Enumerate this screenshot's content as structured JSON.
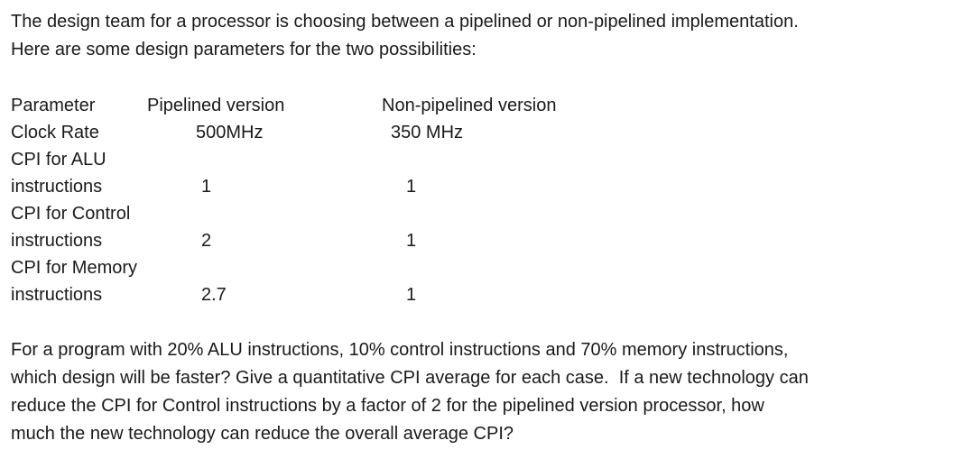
{
  "page": {
    "background_color": "#ffffff",
    "text_color": "#1a1a1a"
  },
  "intro": {
    "lines": [
      "The design team for a processor is choosing between a pipelined or non-pipelined implementation.",
      "Here are some design parameters for the two possibilities:"
    ]
  },
  "table": {
    "headers": [
      "Parameter",
      "Pipelined version",
      "Non-pipelined version"
    ],
    "rows": [
      {
        "parameter": "Clock Rate",
        "pipelined": "500MHz",
        "non_pipelined": "350 MHz"
      },
      {
        "parameter": "CPI for ALU instructions",
        "pipelined": "1",
        "non_pipelined": "1"
      },
      {
        "parameter": "CPI for Control instructions",
        "pipelined": "2",
        "non_pipelined": "1"
      },
      {
        "parameter": "CPI for Memory instructions",
        "pipelined": "2.7",
        "non_pipelined": "1"
      }
    ]
  },
  "question": {
    "lines": [
      "For a program with 20% ALU instructions, 10% control instructions and 70% memory instructions,",
      "which design will be faster? Give a quantitative CPI average for each case.  If a new technology can",
      "reduce the CPI for Control instructions by a factor of 2 for the pipelined version processor, how",
      "much the new technology can reduce the overall average CPI?"
    ]
  }
}
